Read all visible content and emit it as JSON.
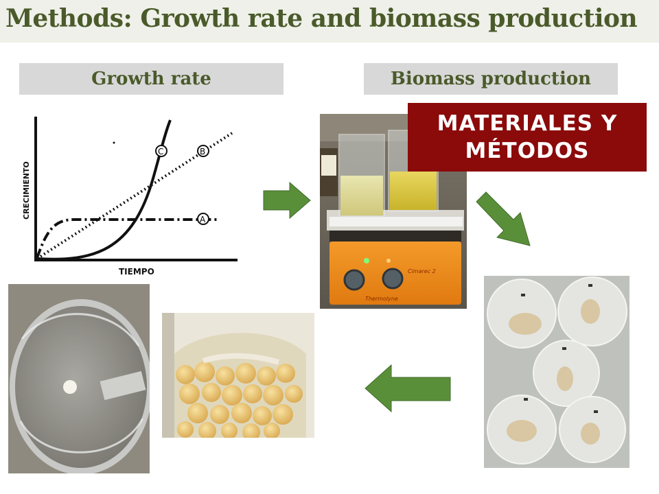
{
  "header": {
    "title": "Methods: Growth rate and biomass production"
  },
  "labels": {
    "growth_rate": "Growth rate",
    "biomass_production": "Biomass production"
  },
  "callout": {
    "line1": "MATERIALES Y",
    "line2": "MÉTODOS"
  },
  "graph": {
    "y_axis_label": "CRECIMIENTO",
    "x_axis_label": "TIEMPO",
    "curve_markers": [
      "A",
      "B",
      "C"
    ]
  },
  "photos": {
    "hotplate": {
      "brand_text": "Thermolyne",
      "model_text": "Cimarec 2"
    }
  },
  "colors": {
    "title_green": "#4a5a2a",
    "callout_red": "#8b0a0a",
    "arrow_green": "#5a8f3a"
  }
}
